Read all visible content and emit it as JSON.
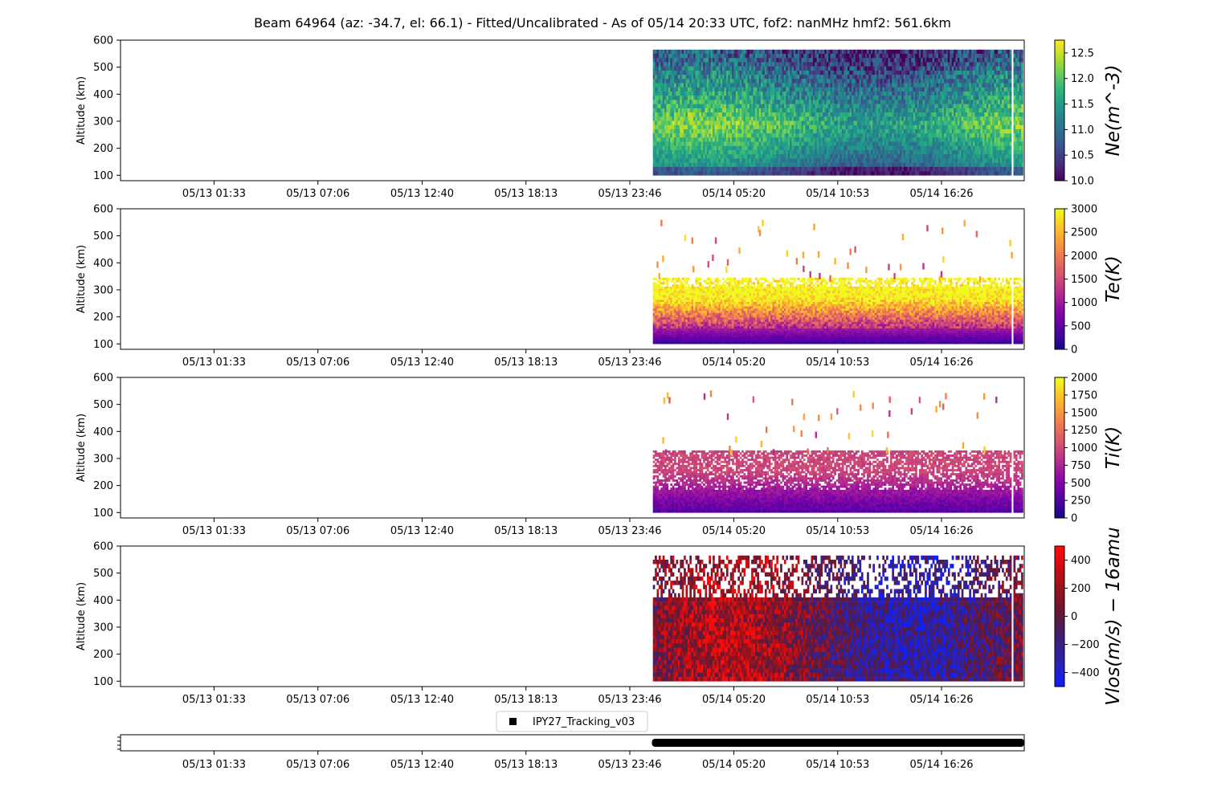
{
  "chart_data": {
    "type": "heatmap",
    "title": "Beam 64964 (az: -34.7, el: 66.1) - Fitted/Uncalibrated - As of 05/14 20:33 UTC, fof2: nanMHz  hmf2: 561.6km",
    "x_tick_labels": [
      "05/13 01:33",
      "05/13 07:06",
      "05/13 12:40",
      "05/13 18:13",
      "05/13 23:46",
      "05/14 05:20",
      "05/14 10:53",
      "05/14 16:26"
    ],
    "x_range_hours": [
      -5.0,
      43.3
    ],
    "x_tick_hours": [
      0,
      5.55,
      11.12,
      16.67,
      22.22,
      27.78,
      33.33,
      38.88
    ],
    "data_start_hours": 23.45,
    "data_end_hours": 43.3,
    "gap_hours": 42.7,
    "panels": [
      {
        "id": "ne",
        "ylabel": "Altitude (km)",
        "ylim": [
          80,
          600
        ],
        "y_tick_labels": [
          "100",
          "200",
          "300",
          "400",
          "500",
          "600"
        ],
        "y_ticks": [
          100,
          200,
          300,
          400,
          500,
          600
        ],
        "data_alt_range": [
          100,
          565
        ],
        "colormap": "viridis",
        "colorbar_label": "Ne(m^-3)",
        "colorbar_range": [
          10.0,
          12.75
        ],
        "colorbar_ticks": [
          10.0,
          10.5,
          11.0,
          11.5,
          12.0,
          12.5
        ],
        "colorbar_tick_labels": [
          "10.0",
          "10.5",
          "11.0",
          "11.5",
          "12.0",
          "12.5"
        ]
      },
      {
        "id": "te",
        "ylabel": "Altitude (km)",
        "ylim": [
          80,
          600
        ],
        "y_tick_labels": [
          "100",
          "200",
          "300",
          "400",
          "500",
          "600"
        ],
        "y_ticks": [
          100,
          200,
          300,
          400,
          500,
          600
        ],
        "data_alt_range": [
          100,
          345
        ],
        "colormap": "plasma",
        "colorbar_label": "Te(K)",
        "colorbar_range": [
          0,
          3000
        ],
        "colorbar_ticks": [
          0,
          500,
          1000,
          1500,
          2000,
          2500,
          3000
        ],
        "colorbar_tick_labels": [
          "0",
          "500",
          "1000",
          "1500",
          "2000",
          "2500",
          "3000"
        ]
      },
      {
        "id": "ti",
        "ylabel": "Altitude (km)",
        "ylim": [
          80,
          600
        ],
        "y_tick_labels": [
          "100",
          "200",
          "300",
          "400",
          "500",
          "600"
        ],
        "y_ticks": [
          100,
          200,
          300,
          400,
          500,
          600
        ],
        "data_alt_range": [
          100,
          330
        ],
        "colormap": "plasma",
        "colorbar_label": "Ti(K)",
        "colorbar_range": [
          0,
          2000
        ],
        "colorbar_ticks": [
          0,
          250,
          500,
          750,
          1000,
          1250,
          1500,
          1750,
          2000
        ],
        "colorbar_tick_labels": [
          "0",
          "250",
          "500",
          "750",
          "1000",
          "1250",
          "1500",
          "1750",
          "2000"
        ]
      },
      {
        "id": "vlos",
        "ylabel": "Altitude (km)",
        "ylim": [
          80,
          600
        ],
        "y_tick_labels": [
          "100",
          "200",
          "300",
          "400",
          "500",
          "600"
        ],
        "y_ticks": [
          100,
          200,
          300,
          400,
          500,
          600
        ],
        "data_alt_range": [
          100,
          565
        ],
        "colormap": "bwr",
        "colorbar_label": "Vlos(m/s) − 16amu",
        "colorbar_range": [
          -500,
          500
        ],
        "colorbar_ticks": [
          -400,
          -200,
          0,
          200,
          400
        ],
        "colorbar_tick_labels": [
          "−400",
          "−200",
          "0",
          "200",
          "400"
        ]
      }
    ],
    "mode_panel": {
      "legend": "IPY27_Tracking_v03",
      "bar_start_hours": 23.4,
      "bar_end_hours": 43.3,
      "color": "#000000"
    }
  }
}
